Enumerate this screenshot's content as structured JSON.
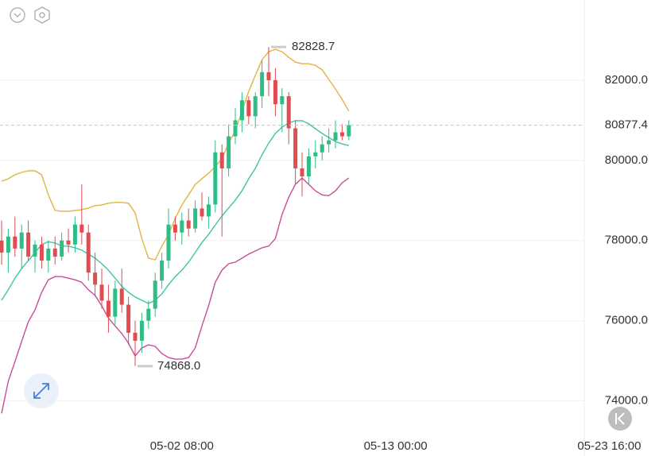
{
  "chart_data": {
    "type": "candlestick",
    "up_color": "#2ebd85",
    "down_color": "#e04c4f",
    "open": [
      78000,
      77700,
      78100,
      77800,
      78200,
      77600,
      77900,
      77500,
      77800,
      77600,
      78000,
      77900,
      78400,
      78200,
      77200,
      76900,
      76500,
      76100,
      76800,
      76400,
      75700,
      75500,
      76000,
      76300,
      77000,
      77500,
      78400,
      78200,
      78500,
      78300,
      78800,
      78600,
      78900,
      80200,
      79800,
      80600,
      81000,
      81500,
      81100,
      81600,
      82200,
      82000,
      81400,
      81600,
      80800,
      79800,
      79600,
      80100,
      80200,
      80400,
      80500,
      80700,
      80600
    ],
    "high": [
      78500,
      78300,
      78600,
      78400,
      78500,
      78000,
      78100,
      78000,
      78100,
      78200,
      78300,
      78600,
      79400,
      78400,
      77700,
      77300,
      76900,
      77000,
      77300,
      76600,
      76000,
      76200,
      76500,
      77200,
      77700,
      78800,
      78600,
      78700,
      78800,
      79000,
      79200,
      79100,
      80500,
      80400,
      80900,
      81300,
      81700,
      81600,
      81700,
      82500,
      82828.7,
      82300,
      81800,
      81700,
      81000,
      80200,
      80300,
      80500,
      80600,
      80800,
      81000,
      80900,
      81000
    ],
    "low": [
      77400,
      77200,
      77600,
      77300,
      77500,
      77200,
      77300,
      77200,
      77400,
      77500,
      77700,
      77700,
      77900,
      77000,
      76600,
      76300,
      75700,
      75900,
      76200,
      75400,
      74868,
      75200,
      75800,
      76100,
      76800,
      77300,
      78000,
      77900,
      78100,
      78200,
      78500,
      78300,
      78700,
      78100,
      79600,
      80400,
      80700,
      80900,
      80800,
      81300,
      81600,
      81100,
      80700,
      80400,
      79400,
      79100,
      79400,
      79800,
      80000,
      80200,
      80300,
      80500,
      80500
    ],
    "close": [
      77700,
      78100,
      77800,
      78200,
      77600,
      77900,
      77500,
      77800,
      77600,
      78000,
      77900,
      78400,
      78200,
      77200,
      76900,
      76500,
      76100,
      76800,
      76400,
      75700,
      75500,
      76000,
      76300,
      77000,
      77500,
      78400,
      78200,
      78500,
      78300,
      78800,
      78600,
      78900,
      80200,
      79800,
      80600,
      81000,
      81500,
      81100,
      81600,
      82200,
      82000,
      81400,
      81600,
      80800,
      79800,
      79600,
      80100,
      80200,
      80400,
      80500,
      80700,
      80600,
      80877.4
    ],
    "lines": [
      {
        "color": "#e3b341",
        "values": [
          79480,
          79540,
          79640,
          79700,
          79740,
          79740,
          79640,
          79140,
          78750,
          78730,
          78730,
          78750,
          78770,
          78810,
          78870,
          78890,
          78930,
          78950,
          78950,
          78930,
          78690,
          78050,
          77560,
          77520,
          77860,
          78150,
          78550,
          78890,
          79140,
          79400,
          79540,
          79680,
          79840,
          80040,
          80430,
          80730,
          81230,
          81720,
          82120,
          82510,
          82710,
          82770,
          82710,
          82570,
          82450,
          82410,
          82410,
          82370,
          82260,
          82020,
          81780,
          81520,
          81230
        ]
      },
      {
        "color": "#3dc4a8",
        "values": [
          76510,
          76770,
          77060,
          77300,
          77500,
          77700,
          77900,
          77970,
          77940,
          77860,
          77860,
          77820,
          77760,
          77660,
          77560,
          77420,
          77260,
          77060,
          76860,
          76710,
          76590,
          76510,
          76430,
          76510,
          76670,
          76900,
          77100,
          77260,
          77460,
          77700,
          77950,
          78150,
          78390,
          78610,
          78810,
          79010,
          79240,
          79540,
          79800,
          80140,
          80430,
          80670,
          80830,
          80930,
          80990,
          80990,
          80910,
          80790,
          80670,
          80570,
          80470,
          80410,
          80370
        ]
      },
      {
        "color": "#c94c9a",
        "values": [
          73690,
          74490,
          74980,
          75480,
          75970,
          76270,
          76710,
          77020,
          77100,
          77100,
          77060,
          77020,
          76960,
          76770,
          76630,
          76370,
          76070,
          75870,
          75680,
          75440,
          75120,
          75320,
          75400,
          75360,
          75180,
          75080,
          75040,
          75040,
          75080,
          75320,
          75870,
          76370,
          76960,
          77260,
          77420,
          77460,
          77560,
          77660,
          77740,
          77820,
          77860,
          78050,
          78650,
          79080,
          79400,
          79560,
          79400,
          79240,
          79140,
          79120,
          79240,
          79440,
          79560
        ]
      }
    ],
    "ylim": [
      73200,
      84000
    ],
    "yticks": [
      {
        "value": 74000,
        "label": "74000.0"
      },
      {
        "value": 76000,
        "label": "76000.0"
      },
      {
        "value": 78000,
        "label": "78000.0"
      },
      {
        "value": 80000,
        "label": "80000.0"
      },
      {
        "value": 82000,
        "label": "82000.0"
      }
    ],
    "xlim": [
      -0.24,
      98.45
    ],
    "xticks": [
      {
        "value": 27,
        "label": "05-02 08:00"
      },
      {
        "value": 59,
        "label": "05-13 00:00"
      },
      {
        "value": 91,
        "label": "05-23 16:00"
      }
    ],
    "grid": true,
    "high_label": "82828.7",
    "low_label": "74868.0",
    "last_price": {
      "value": 80877.4,
      "label": "80877.4"
    },
    "last_price_color": "#3aa862"
  }
}
